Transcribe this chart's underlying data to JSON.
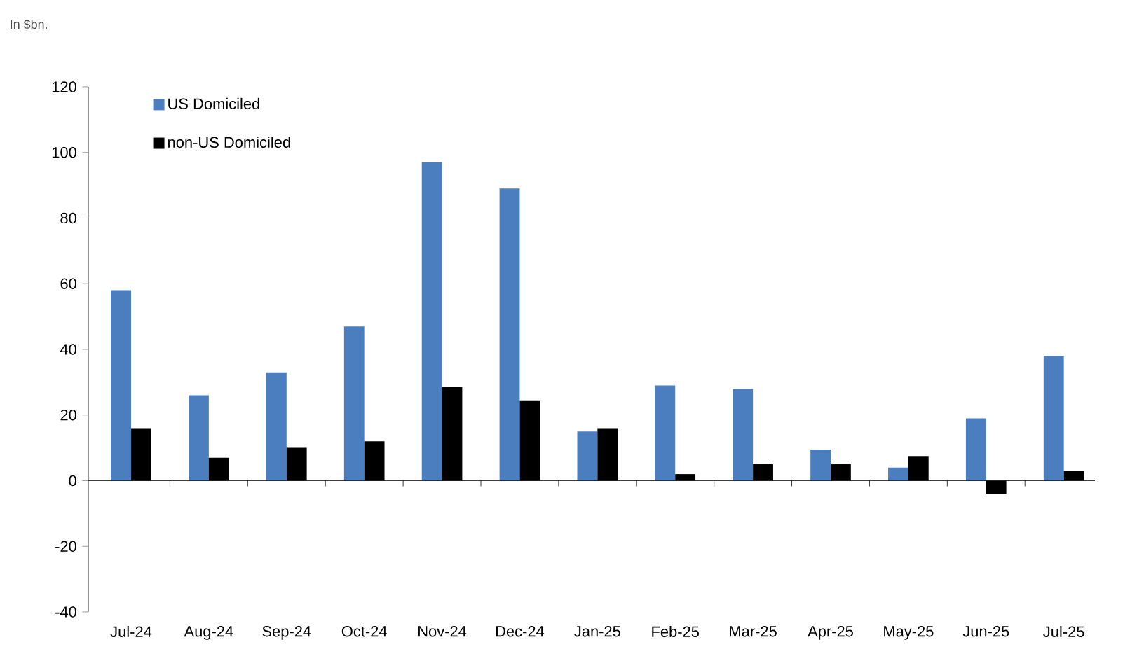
{
  "chart_data": {
    "type": "bar",
    "annotations": [
      "In $bn."
    ],
    "categories": [
      "Jul-24",
      "Aug-24",
      "Sep-24",
      "Oct-24",
      "Nov-24",
      "Dec-24",
      "Jan-25",
      "Feb-25",
      "Mar-25",
      "Apr-25",
      "May-25",
      "Jun-25",
      "Jul-25"
    ],
    "series": [
      {
        "name": "US Domiciled",
        "color": "#4a7ebf",
        "values": [
          58,
          26,
          33,
          47,
          97,
          89,
          15,
          29,
          28,
          9.5,
          4,
          19,
          38
        ]
      },
      {
        "name": "non-US Domiciled",
        "color": "#000000",
        "values": [
          16,
          7,
          10,
          12,
          28.5,
          24.5,
          16,
          2,
          5,
          5,
          7.5,
          -4,
          3
        ]
      }
    ],
    "ylim": [
      -40,
      120
    ],
    "yticks": [
      -40,
      -20,
      0,
      20,
      40,
      60,
      80,
      100,
      120
    ],
    "legend": "top left"
  }
}
